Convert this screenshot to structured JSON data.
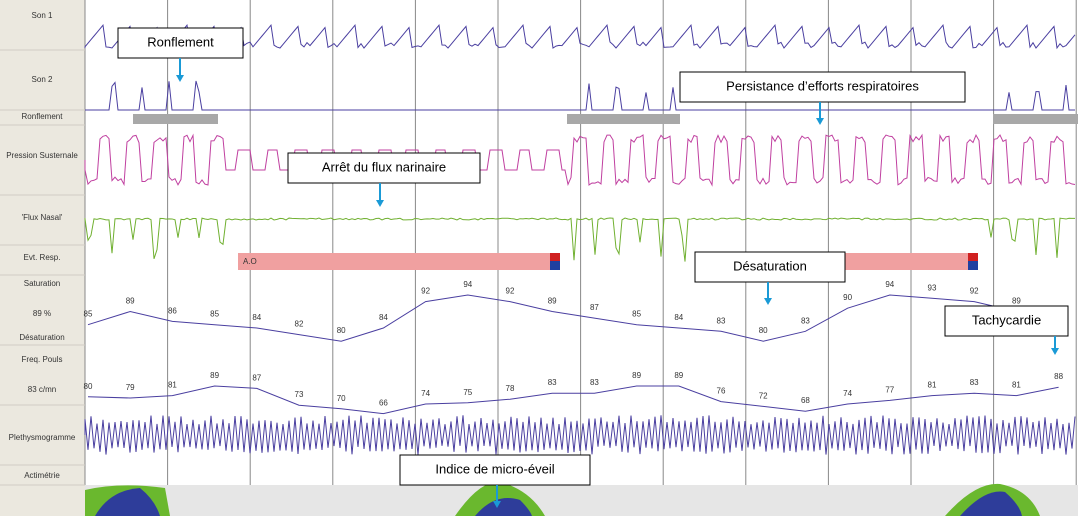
{
  "channels": [
    "Son 1",
    "Son 2",
    "Ronflement",
    "Pression Susternale",
    "'Flux Nasal'",
    "Evt. Resp.",
    "Saturation",
    "89 %",
    "Désaturation",
    "Freq. Pouls",
    "83 c/mn",
    "Plethysmogramme",
    "Actimétrie"
  ],
  "event_label": "A.O",
  "annotations": [
    "Ronflement",
    "Persistance d’efforts respiratoires",
    "Arrêt du flux narinaire",
    "Désaturation",
    "Tachycardie",
    "Indice de micro-éveil"
  ],
  "saturation": {
    "values": [
      "85",
      "89",
      "86",
      "85",
      "84",
      "82",
      "80",
      "84",
      "92",
      "94",
      "92",
      "89",
      "87",
      "85",
      "84",
      "83",
      "80",
      "83",
      "90",
      "94",
      "93",
      "92",
      "89"
    ]
  },
  "pulse": {
    "values": [
      "80",
      "79",
      "81",
      "89",
      "87",
      "73",
      "70",
      "66",
      "74",
      "75",
      "78",
      "83",
      "83",
      "89",
      "89",
      "76",
      "72",
      "68",
      "74",
      "77",
      "81",
      "83",
      "81",
      "88"
    ]
  }
}
